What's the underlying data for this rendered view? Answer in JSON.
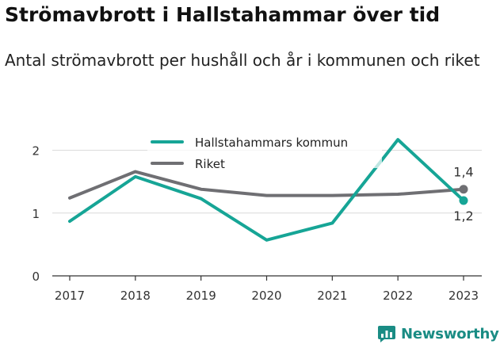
{
  "header": {
    "title": "Strömavbrott i Hallstahammar över tid",
    "subtitle": "Antal strömavbrott per hushåll och år i kommunen och riket"
  },
  "brand": {
    "name": "Newsworthy",
    "icon": "newsworthy-logo-icon",
    "color": "#1a8c84"
  },
  "chart_data": {
    "type": "line",
    "x": [
      "2017",
      "2018",
      "2019",
      "2020",
      "2021",
      "2022",
      "2023"
    ],
    "yticks": [
      "0",
      "1",
      "2"
    ],
    "ylim": [
      0,
      2.5
    ],
    "grid": true,
    "legend_position": "top-center",
    "series": [
      {
        "name": "Hallstahammars kommun",
        "color": "#16a596",
        "values": [
          0.87,
          1.58,
          1.23,
          0.57,
          0.84,
          2.17,
          1.2
        ],
        "end_label": "1,2"
      },
      {
        "name": "Riket",
        "color": "#6f6f73",
        "values": [
          1.24,
          1.66,
          1.38,
          1.28,
          1.28,
          1.3,
          1.38
        ],
        "end_label": "1,4"
      }
    ]
  }
}
